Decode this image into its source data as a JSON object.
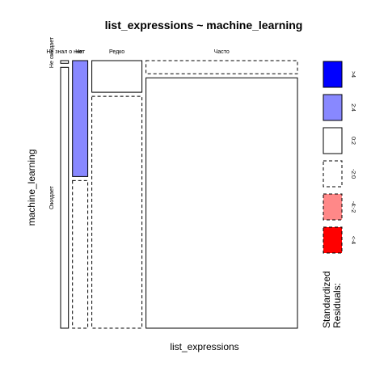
{
  "chart_data": {
    "type": "mosaic",
    "title": "list_expressions ~ machine_learning",
    "xlabel": "list_expressions",
    "ylabel": "machine_learning",
    "x_categories": [
      "Не знал о них",
      "Нет",
      "Редко",
      "Часто"
    ],
    "y_categories": [
      "Не ожидает",
      "Ожидает"
    ],
    "x_proportions": [
      0.035,
      0.068,
      0.223,
      0.674
    ],
    "cells": [
      {
        "x": "Не знал о них",
        "y": "Не ожидает",
        "share": 0.01,
        "residual_class": "0:2"
      },
      {
        "x": "Не знал о них",
        "y": "Ожидает",
        "share": 0.99,
        "residual_class": "0:2"
      },
      {
        "x": "Нет",
        "y": "Не ожидает",
        "share": 0.44,
        "residual_class": "2:4"
      },
      {
        "x": "Нет",
        "y": "Ожидает",
        "share": 0.56,
        "residual_class": "-2:0"
      },
      {
        "x": "Редко",
        "y": "Не ожидает",
        "share": 0.12,
        "residual_class": "0:2"
      },
      {
        "x": "Редко",
        "y": "Ожидает",
        "share": 0.88,
        "residual_class": "-2:0"
      },
      {
        "x": "Часто",
        "y": "Не ожидает",
        "share": 0.05,
        "residual_class": "-2:0"
      },
      {
        "x": "Часто",
        "y": "Ожидает",
        "share": 0.95,
        "residual_class": "0:2"
      }
    ],
    "legend": {
      "title_lines": [
        "Standardized",
        "Residuals:"
      ],
      "placement": "right",
      "entries": [
        {
          "label": ">4",
          "color": "#0000ff",
          "border": "solid"
        },
        {
          "label": "2:4",
          "color": "#8888ff",
          "border": "solid"
        },
        {
          "label": "0:2",
          "color": "#ffffff",
          "border": "solid"
        },
        {
          "label": "-2:0",
          "color": "#ffffff",
          "border": "dashed"
        },
        {
          "label": "-4:-2",
          "color": "#ff8888",
          "border": "dashed"
        },
        {
          "label": "<-4",
          "color": "#ff0000",
          "border": "dashed"
        }
      ]
    }
  }
}
